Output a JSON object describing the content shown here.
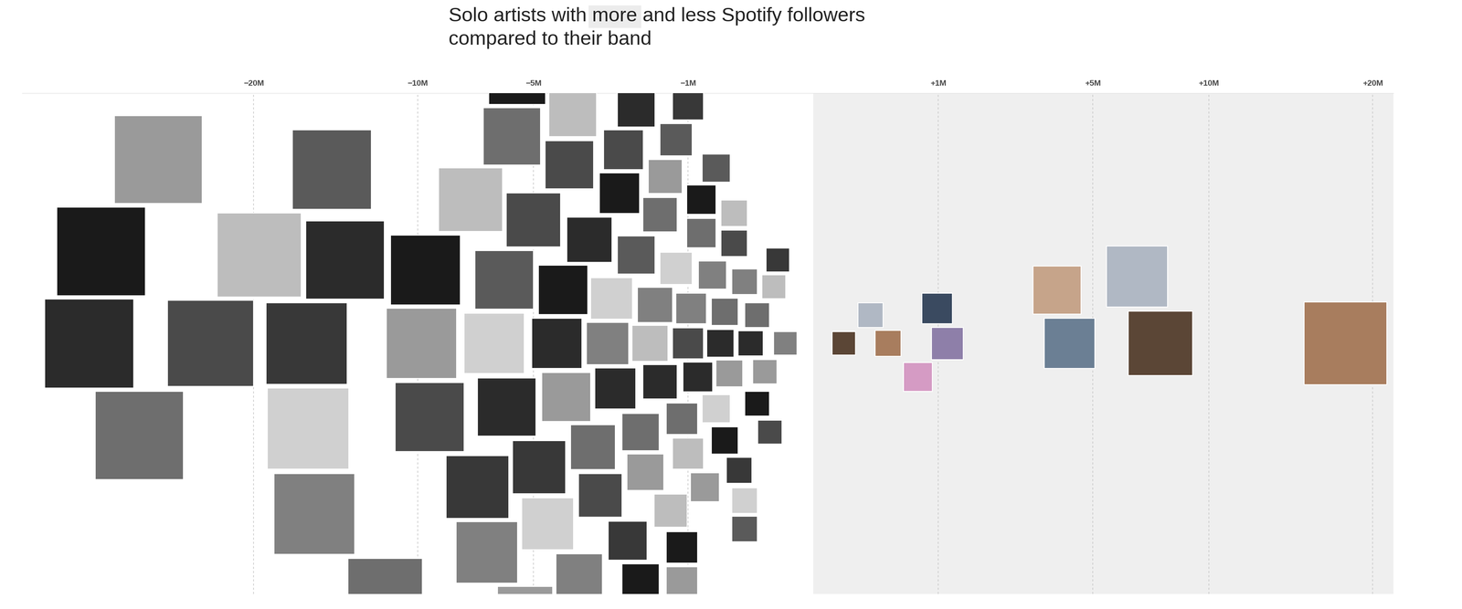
{
  "chart_data": {
    "type": "scatter",
    "title": "Solo artists with more and less Spotify followers compared to their band",
    "x": [
      -33.5,
      -29.0,
      -32.4,
      -27.4,
      -23.2,
      -19.6,
      -16.4,
      -15.9,
      -16.3,
      -14.8,
      -14.0,
      -11.7,
      -9.6,
      -9.8,
      -9.4,
      -7.5,
      -7.2,
      -6.8,
      -6.5,
      -6.1,
      -6.0,
      -5.8,
      -5.6,
      -5.3,
      -5.0,
      -4.9,
      -4.8,
      -4.7,
      -4.5,
      -4.4,
      -4.2,
      -4.1,
      -4.0,
      -3.9,
      -3.8,
      -3.7,
      -3.6,
      -3.5,
      -3.4,
      -3.3,
      -3.2,
      -3.1,
      -3.0,
      -3.0,
      -2.9,
      -2.8,
      -2.8,
      -2.7,
      -2.6,
      -2.6,
      -2.5,
      -2.5,
      -2.4,
      -2.4,
      -2.3,
      -2.3,
      -2.2,
      -2.1,
      -2.1,
      -2.0,
      -2.0,
      -1.9,
      -1.9,
      -1.8,
      -1.8,
      -1.7,
      -1.7,
      -1.6,
      -1.6,
      -1.6,
      -1.5,
      -1.5,
      -1.5,
      -1.4,
      -1.4,
      -1.3,
      -1.3,
      -1.3,
      -1.2,
      -1.2,
      -1.2,
      -1.1,
      -1.1,
      -1.1,
      -1.0,
      -1.0,
      -1.0,
      -0.95,
      -0.9,
      -0.9,
      -0.85,
      -0.8,
      -0.8,
      -0.75,
      -0.7,
      -0.7,
      -0.7,
      -0.65,
      -0.6,
      -0.6,
      -0.55,
      -0.5,
      -0.5,
      -0.45,
      -0.4,
      -0.4,
      -0.35,
      -0.3,
      -0.3,
      -0.3,
      -0.25,
      -0.2,
      -0.2,
      -0.15,
      -0.12,
      -0.1,
      -0.08,
      -0.05,
      0.06,
      0.21,
      0.36,
      0.7,
      0.98,
      1.15,
      4.2,
      3.8,
      7.7,
      6.7,
      18.1
    ],
    "xlim": [
      -40,
      21.5
    ],
    "xticks": [
      {
        "value": -20,
        "label": "−20M"
      },
      {
        "value": -10,
        "label": "−10M"
      },
      {
        "value": -5,
        "label": "−5M"
      },
      {
        "value": -1,
        "label": "−1M"
      },
      {
        "value": 1,
        "label": "+1M"
      },
      {
        "value": 5,
        "label": "+5M"
      },
      {
        "value": 10,
        "label": "+10M"
      },
      {
        "value": 20,
        "label": "+20M"
      }
    ],
    "grid": true,
    "tick_labels": "x"
  }
}
